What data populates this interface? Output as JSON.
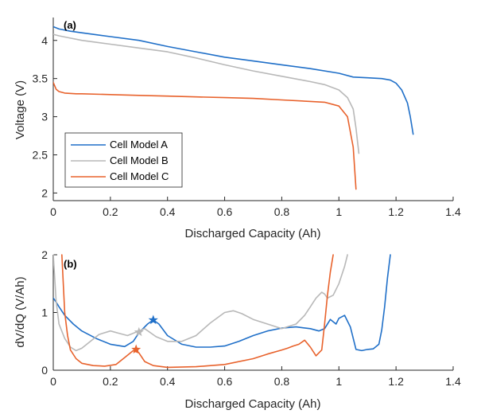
{
  "colors": {
    "A": "#1f6fc8",
    "B": "#b8b8b8",
    "C": "#e8622c"
  },
  "chart_data": [
    {
      "type": "line",
      "panel_label": "(a)",
      "xlabel": "Discharged Capacity (Ah)",
      "ylabel": "Voltage (V)",
      "xlim": [
        0,
        1.4
      ],
      "ylim": [
        1.9,
        4.3
      ],
      "xticks": [
        "0",
        "0.2",
        "0.4",
        "0.6",
        "0.8",
        "1",
        "1.2",
        "1.4"
      ],
      "yticks": [
        "2",
        "2.5",
        "3",
        "3.5",
        "4"
      ],
      "legend_position": "bottom-left",
      "series": [
        {
          "name": "Cell Model A",
          "color_key": "A",
          "x": [
            0,
            0.02,
            0.06,
            0.1,
            0.2,
            0.3,
            0.4,
            0.5,
            0.6,
            0.7,
            0.8,
            0.9,
            1.0,
            1.05,
            1.1,
            1.15,
            1.18,
            1.2,
            1.22,
            1.24,
            1.25,
            1.26
          ],
          "y": [
            4.18,
            4.15,
            4.12,
            4.1,
            4.05,
            4.0,
            3.92,
            3.85,
            3.78,
            3.73,
            3.68,
            3.63,
            3.57,
            3.52,
            3.51,
            3.5,
            3.48,
            3.44,
            3.35,
            3.18,
            3.0,
            2.77
          ]
        },
        {
          "name": "Cell Model B",
          "color_key": "B",
          "x": [
            0,
            0.02,
            0.06,
            0.1,
            0.2,
            0.3,
            0.4,
            0.5,
            0.6,
            0.7,
            0.8,
            0.9,
            0.95,
            1.0,
            1.03,
            1.05,
            1.06,
            1.07
          ],
          "y": [
            4.08,
            4.06,
            4.03,
            4.0,
            3.95,
            3.9,
            3.85,
            3.77,
            3.68,
            3.6,
            3.53,
            3.46,
            3.42,
            3.35,
            3.25,
            3.1,
            2.85,
            2.52
          ]
        },
        {
          "name": "Cell Model C",
          "color_key": "C",
          "x": [
            0,
            0.01,
            0.02,
            0.04,
            0.08,
            0.1,
            0.2,
            0.3,
            0.4,
            0.5,
            0.6,
            0.7,
            0.8,
            0.9,
            0.95,
            1.0,
            1.03,
            1.05,
            1.06
          ],
          "y": [
            3.45,
            3.36,
            3.33,
            3.31,
            3.3,
            3.3,
            3.29,
            3.28,
            3.27,
            3.26,
            3.25,
            3.24,
            3.22,
            3.2,
            3.19,
            3.14,
            3.0,
            2.6,
            2.05
          ]
        }
      ]
    },
    {
      "type": "line",
      "panel_label": "(b)",
      "xlabel": "Discharged Capacity (Ah)",
      "ylabel": "dV/dQ (V/Ah)",
      "xlim": [
        0,
        1.4
      ],
      "ylim": [
        0,
        2
      ],
      "xticks": [
        "0",
        "0.2",
        "0.4",
        "0.6",
        "0.8",
        "1",
        "1.2",
        "1.4"
      ],
      "yticks": [
        "0",
        "1",
        "2"
      ],
      "series": [
        {
          "color_key": "A",
          "x": [
            0.0,
            0.01,
            0.02,
            0.04,
            0.07,
            0.1,
            0.15,
            0.2,
            0.25,
            0.28,
            0.3,
            0.33,
            0.35,
            0.37,
            0.4,
            0.45,
            0.5,
            0.55,
            0.6,
            0.65,
            0.7,
            0.75,
            0.8,
            0.85,
            0.9,
            0.93,
            0.95,
            0.97,
            0.99,
            1.0,
            1.02,
            1.04,
            1.06,
            1.08,
            1.1,
            1.12,
            1.14,
            1.15,
            1.16,
            1.17,
            1.18
          ],
          "y": [
            1.25,
            1.18,
            1.1,
            0.95,
            0.8,
            0.68,
            0.55,
            0.45,
            0.41,
            0.5,
            0.65,
            0.8,
            0.87,
            0.8,
            0.6,
            0.45,
            0.4,
            0.4,
            0.42,
            0.5,
            0.6,
            0.68,
            0.73,
            0.75,
            0.72,
            0.68,
            0.72,
            0.88,
            0.8,
            0.9,
            0.95,
            0.75,
            0.36,
            0.34,
            0.36,
            0.37,
            0.45,
            0.7,
            1.1,
            1.6,
            2.0
          ]
        },
        {
          "color_key": "B",
          "x": [
            0.0,
            0.005,
            0.01,
            0.02,
            0.04,
            0.06,
            0.08,
            0.1,
            0.13,
            0.16,
            0.2,
            0.23,
            0.26,
            0.29,
            0.32,
            0.36,
            0.4,
            0.45,
            0.5,
            0.55,
            0.6,
            0.63,
            0.66,
            0.7,
            0.75,
            0.8,
            0.85,
            0.88,
            0.9,
            0.92,
            0.94,
            0.95,
            0.96,
            0.98,
            1.0,
            1.02,
            1.03
          ],
          "y": [
            2.0,
            1.6,
            1.2,
            0.8,
            0.55,
            0.4,
            0.34,
            0.38,
            0.5,
            0.62,
            0.68,
            0.64,
            0.6,
            0.66,
            0.72,
            0.58,
            0.5,
            0.5,
            0.6,
            0.82,
            1.0,
            1.03,
            0.98,
            0.88,
            0.8,
            0.72,
            0.8,
            0.95,
            1.1,
            1.25,
            1.35,
            1.32,
            1.25,
            1.3,
            1.5,
            1.8,
            2.0
          ]
        },
        {
          "color_key": "C",
          "x": [
            0.03,
            0.035,
            0.04,
            0.05,
            0.06,
            0.08,
            0.1,
            0.14,
            0.18,
            0.22,
            0.25,
            0.28,
            0.3,
            0.32,
            0.35,
            0.4,
            0.5,
            0.6,
            0.7,
            0.75,
            0.8,
            0.82,
            0.84,
            0.86,
            0.88,
            0.9,
            0.92,
            0.94,
            0.95,
            0.96,
            0.97,
            0.98
          ],
          "y": [
            2.0,
            1.5,
            1.0,
            0.6,
            0.35,
            0.2,
            0.12,
            0.08,
            0.07,
            0.1,
            0.22,
            0.34,
            0.3,
            0.15,
            0.08,
            0.05,
            0.06,
            0.1,
            0.2,
            0.28,
            0.35,
            0.38,
            0.42,
            0.45,
            0.52,
            0.4,
            0.25,
            0.35,
            0.8,
            1.3,
            1.7,
            2.0
          ]
        }
      ],
      "markers": [
        {
          "series": "A",
          "x": 0.35,
          "y": 0.87,
          "shape": "star"
        },
        {
          "series": "B",
          "x": 0.3,
          "y": 0.66,
          "shape": "star"
        },
        {
          "series": "C",
          "x": 0.29,
          "y": 0.36,
          "shape": "star"
        }
      ]
    }
  ]
}
